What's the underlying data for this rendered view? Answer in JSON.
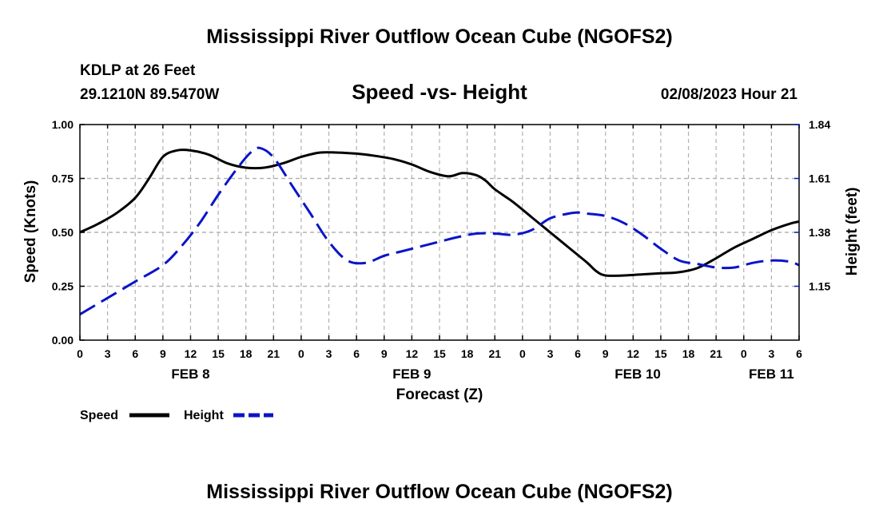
{
  "header": {
    "title": "Mississippi River Outflow Ocean Cube (NGOFS2)",
    "station": "KDLP at 26 Feet",
    "coords": "29.1210N  89.5470W",
    "chart_title": "Speed -vs- Height",
    "timestamp": "02/08/2023 Hour 21",
    "footer_title": "Mississippi River Outflow Ocean Cube (NGOFS2)"
  },
  "colors": {
    "speed": "#000000",
    "height": "#0a14c8",
    "grid": "#b0b0b0",
    "axis": "#000000"
  },
  "chart_data": {
    "type": "line",
    "title": "Speed -vs- Height",
    "xlabel": "Forecast (Z)",
    "ylabel": "Speed (Knots)",
    "y2label": "Height (feet)",
    "xlim": [
      0,
      78
    ],
    "ylim": [
      0,
      1.0
    ],
    "y2lim": [
      0.92,
      1.84
    ],
    "x_tick_values": [
      0,
      3,
      6,
      9,
      12,
      15,
      18,
      21,
      24,
      27,
      30,
      33,
      36,
      39,
      42,
      45,
      48,
      51,
      54,
      57,
      60,
      63,
      66,
      69,
      72,
      75,
      78
    ],
    "x_tick_labels": [
      "0",
      "3",
      "6",
      "9",
      "12",
      "15",
      "18",
      "21",
      "0",
      "3",
      "6",
      "9",
      "12",
      "15",
      "18",
      "21",
      "0",
      "3",
      "6",
      "9",
      "12",
      "15",
      "18",
      "21",
      "0",
      "3",
      "6"
    ],
    "y_ticks": [
      "0.00",
      "0.25",
      "0.50",
      "0.75",
      "1.00"
    ],
    "y_tick_values": [
      0,
      0.25,
      0.5,
      0.75,
      1.0
    ],
    "y2_ticks": [
      "1.15",
      "1.38",
      "1.61",
      "1.84"
    ],
    "y2_tick_values": [
      1.15,
      1.38,
      1.61,
      1.84
    ],
    "date_labels": [
      {
        "label": "FEB 8",
        "x": 12
      },
      {
        "label": "FEB 9",
        "x": 36
      },
      {
        "label": "FEB 10",
        "x": 60.5
      },
      {
        "label": "FEB 11",
        "x": 75
      }
    ],
    "legend": [
      "Speed",
      "Height"
    ],
    "series": [
      {
        "name": "Speed",
        "axis": "left",
        "style": "solid",
        "x": [
          0,
          2,
          4,
          6,
          7.5,
          9,
          10.5,
          12,
          14,
          16,
          18,
          20,
          22,
          24,
          26,
          28,
          30,
          32,
          34,
          36,
          38,
          40,
          41.5,
          43,
          44,
          45,
          47,
          49,
          51,
          53,
          55,
          56,
          57,
          59,
          61,
          63,
          65,
          67,
          69,
          71,
          73,
          75,
          77,
          78
        ],
        "values": [
          0.5,
          0.54,
          0.59,
          0.66,
          0.75,
          0.85,
          0.88,
          0.88,
          0.86,
          0.82,
          0.8,
          0.8,
          0.82,
          0.85,
          0.87,
          0.87,
          0.865,
          0.855,
          0.84,
          0.815,
          0.78,
          0.76,
          0.775,
          0.765,
          0.74,
          0.7,
          0.64,
          0.57,
          0.5,
          0.43,
          0.36,
          0.32,
          0.3,
          0.3,
          0.305,
          0.31,
          0.315,
          0.335,
          0.38,
          0.43,
          0.47,
          0.51,
          0.54,
          0.55
        ]
      },
      {
        "name": "Height",
        "axis": "right",
        "style": "dashed",
        "x": [
          0,
          3,
          6,
          9,
          11,
          13,
          15,
          17,
          18.5,
          19.5,
          21,
          23,
          25,
          27,
          29,
          31,
          33,
          35,
          37,
          39,
          41,
          43,
          45,
          47,
          49,
          51,
          53,
          54,
          55,
          57,
          59,
          61,
          63,
          65,
          67,
          69,
          71,
          73,
          75,
          77,
          78
        ],
        "values": [
          1.03,
          1.1,
          1.17,
          1.24,
          1.32,
          1.42,
          1.54,
          1.65,
          1.72,
          1.74,
          1.7,
          1.58,
          1.46,
          1.34,
          1.26,
          1.25,
          1.28,
          1.3,
          1.32,
          1.34,
          1.36,
          1.375,
          1.375,
          1.37,
          1.39,
          1.44,
          1.46,
          1.465,
          1.46,
          1.45,
          1.42,
          1.37,
          1.31,
          1.26,
          1.245,
          1.23,
          1.23,
          1.25,
          1.26,
          1.255,
          1.24
        ]
      }
    ]
  }
}
